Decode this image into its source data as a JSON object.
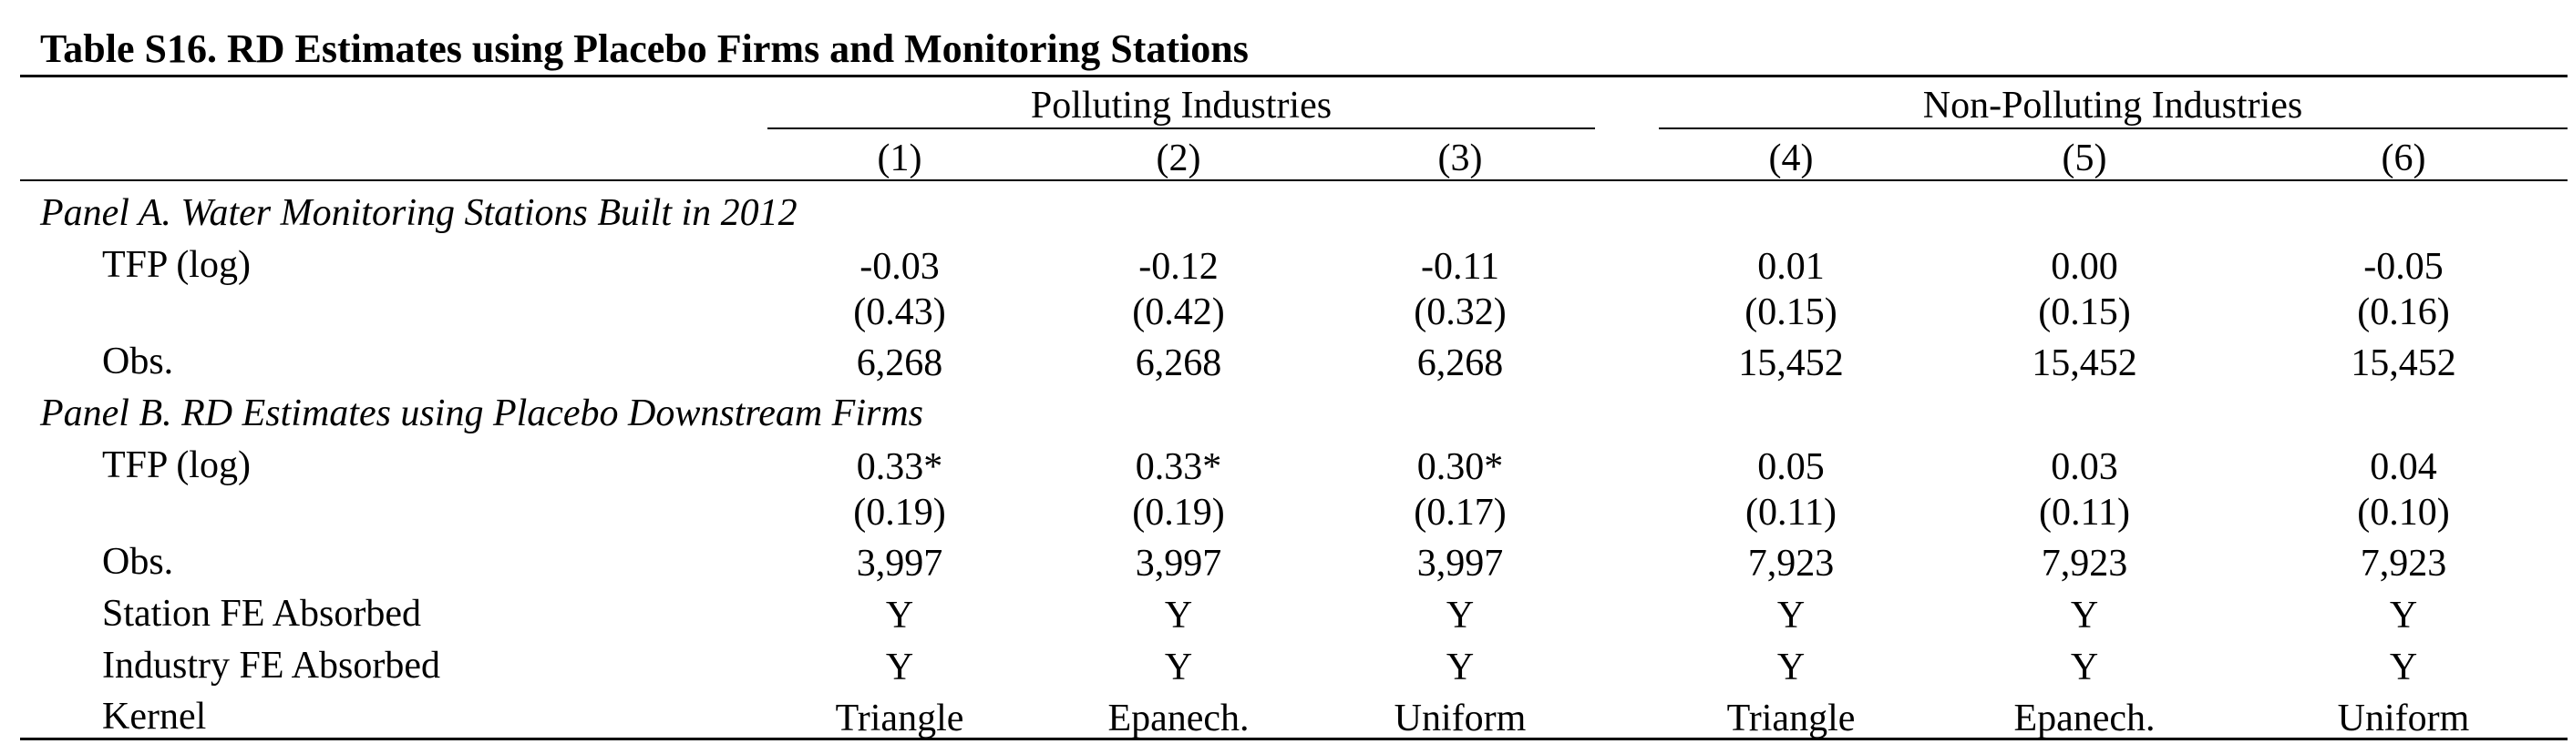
{
  "table": {
    "title": "Table S16. RD Estimates using Placebo Firms and Monitoring Stations",
    "groups": [
      "Polluting Industries",
      "Non-Polluting Industries"
    ],
    "columns": [
      "(1)",
      "(2)",
      "(3)",
      "(4)",
      "(5)",
      "(6)"
    ],
    "panel_a": {
      "title": "Panel A. Water Monitoring Stations Built in 2012",
      "tfp_label": "TFP (log)",
      "tfp": [
        "-0.03",
        "-0.12",
        "-0.11",
        "0.01",
        "0.00",
        "-0.05"
      ],
      "se": [
        "(0.43)",
        "(0.42)",
        "(0.32)",
        "(0.15)",
        "(0.15)",
        "(0.16)"
      ],
      "obs_label": "Obs.",
      "obs": [
        "6,268",
        "6,268",
        "6,268",
        "15,452",
        "15,452",
        "15,452"
      ]
    },
    "panel_b": {
      "title": "Panel B. RD Estimates using Placebo Downstream Firms",
      "tfp_label": "TFP (log)",
      "tfp": [
        "0.33*",
        "0.33*",
        "0.30*",
        "0.05",
        "0.03",
        "0.04"
      ],
      "se": [
        "(0.19)",
        "(0.19)",
        "(0.17)",
        "(0.11)",
        "(0.11)",
        "(0.10)"
      ],
      "obs_label": "Obs.",
      "obs": [
        "3,997",
        "3,997",
        "3,997",
        "7,923",
        "7,923",
        "7,923"
      ],
      "station_fe_label": "Station FE Absorbed",
      "station_fe": [
        "Y",
        "Y",
        "Y",
        "Y",
        "Y",
        "Y"
      ],
      "industry_fe_label": "Industry FE Absorbed",
      "industry_fe": [
        "Y",
        "Y",
        "Y",
        "Y",
        "Y",
        "Y"
      ],
      "kernel_label": "Kernel",
      "kernel": [
        "Triangle",
        "Epanech.",
        "Uniform",
        "Triangle",
        "Epanech.",
        "Uniform"
      ]
    }
  }
}
